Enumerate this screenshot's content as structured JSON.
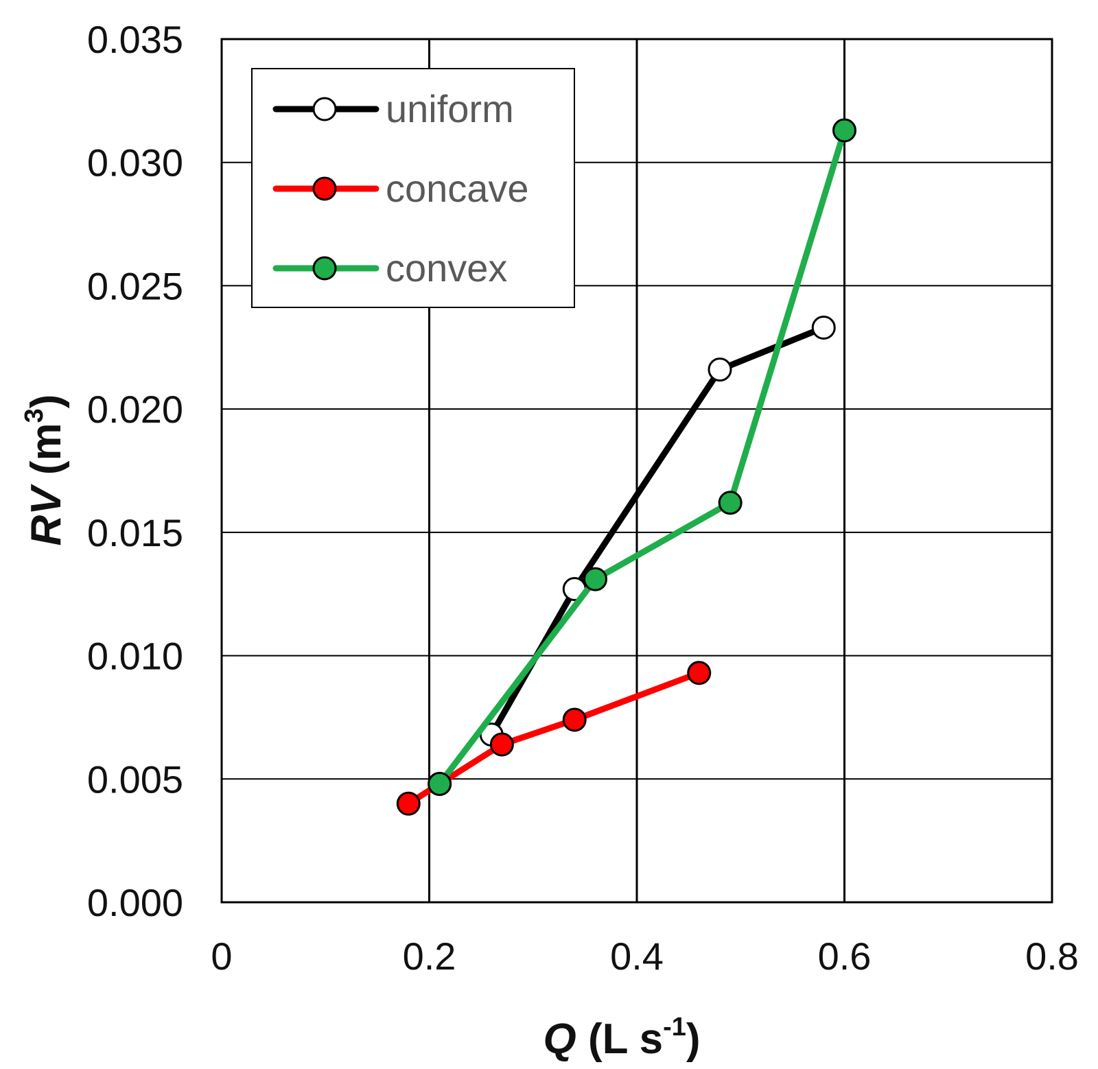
{
  "chart_data": {
    "type": "line",
    "xlabel": {
      "var": "Q",
      "unit_pre": " (L s",
      "sup": "-1",
      "unit_post": ")"
    },
    "ylabel": {
      "var": "RV",
      "unit_pre": " (m",
      "sup": "3",
      "unit_post": ")"
    },
    "xlim": [
      0,
      0.8
    ],
    "ylim": [
      0,
      0.035
    ],
    "xticks": [
      "0",
      "0.2",
      "0.4",
      "0.6",
      "0.8"
    ],
    "xtick_values": [
      0,
      0.2,
      0.4,
      0.6,
      0.8
    ],
    "yticks": [
      "0.000",
      "0.005",
      "0.010",
      "0.015",
      "0.020",
      "0.025",
      "0.030",
      "0.035"
    ],
    "ytick_values": [
      0,
      0.005,
      0.01,
      0.015,
      0.02,
      0.025,
      0.03,
      0.035
    ],
    "grid": true,
    "legend_position": "top-left",
    "series": [
      {
        "name": "uniform",
        "line_color": "#000000",
        "marker_fill": "#ffffff",
        "x": [
          0.26,
          0.34,
          0.48,
          0.58
        ],
        "y": [
          0.0068,
          0.0127,
          0.0216,
          0.0233
        ]
      },
      {
        "name": "concave",
        "line_color": "#ff0000",
        "marker_fill": "#ff0000",
        "x": [
          0.18,
          0.21,
          0.27,
          0.34,
          0.46
        ],
        "y": [
          0.004,
          0.0048,
          0.0064,
          0.0074,
          0.0093
        ]
      },
      {
        "name": "convex",
        "line_color": "#1fae4b",
        "marker_fill": "#1fae4b",
        "x": [
          0.21,
          0.36,
          0.49,
          0.6
        ],
        "y": [
          0.0048,
          0.0131,
          0.0162,
          0.0313
        ]
      }
    ]
  }
}
